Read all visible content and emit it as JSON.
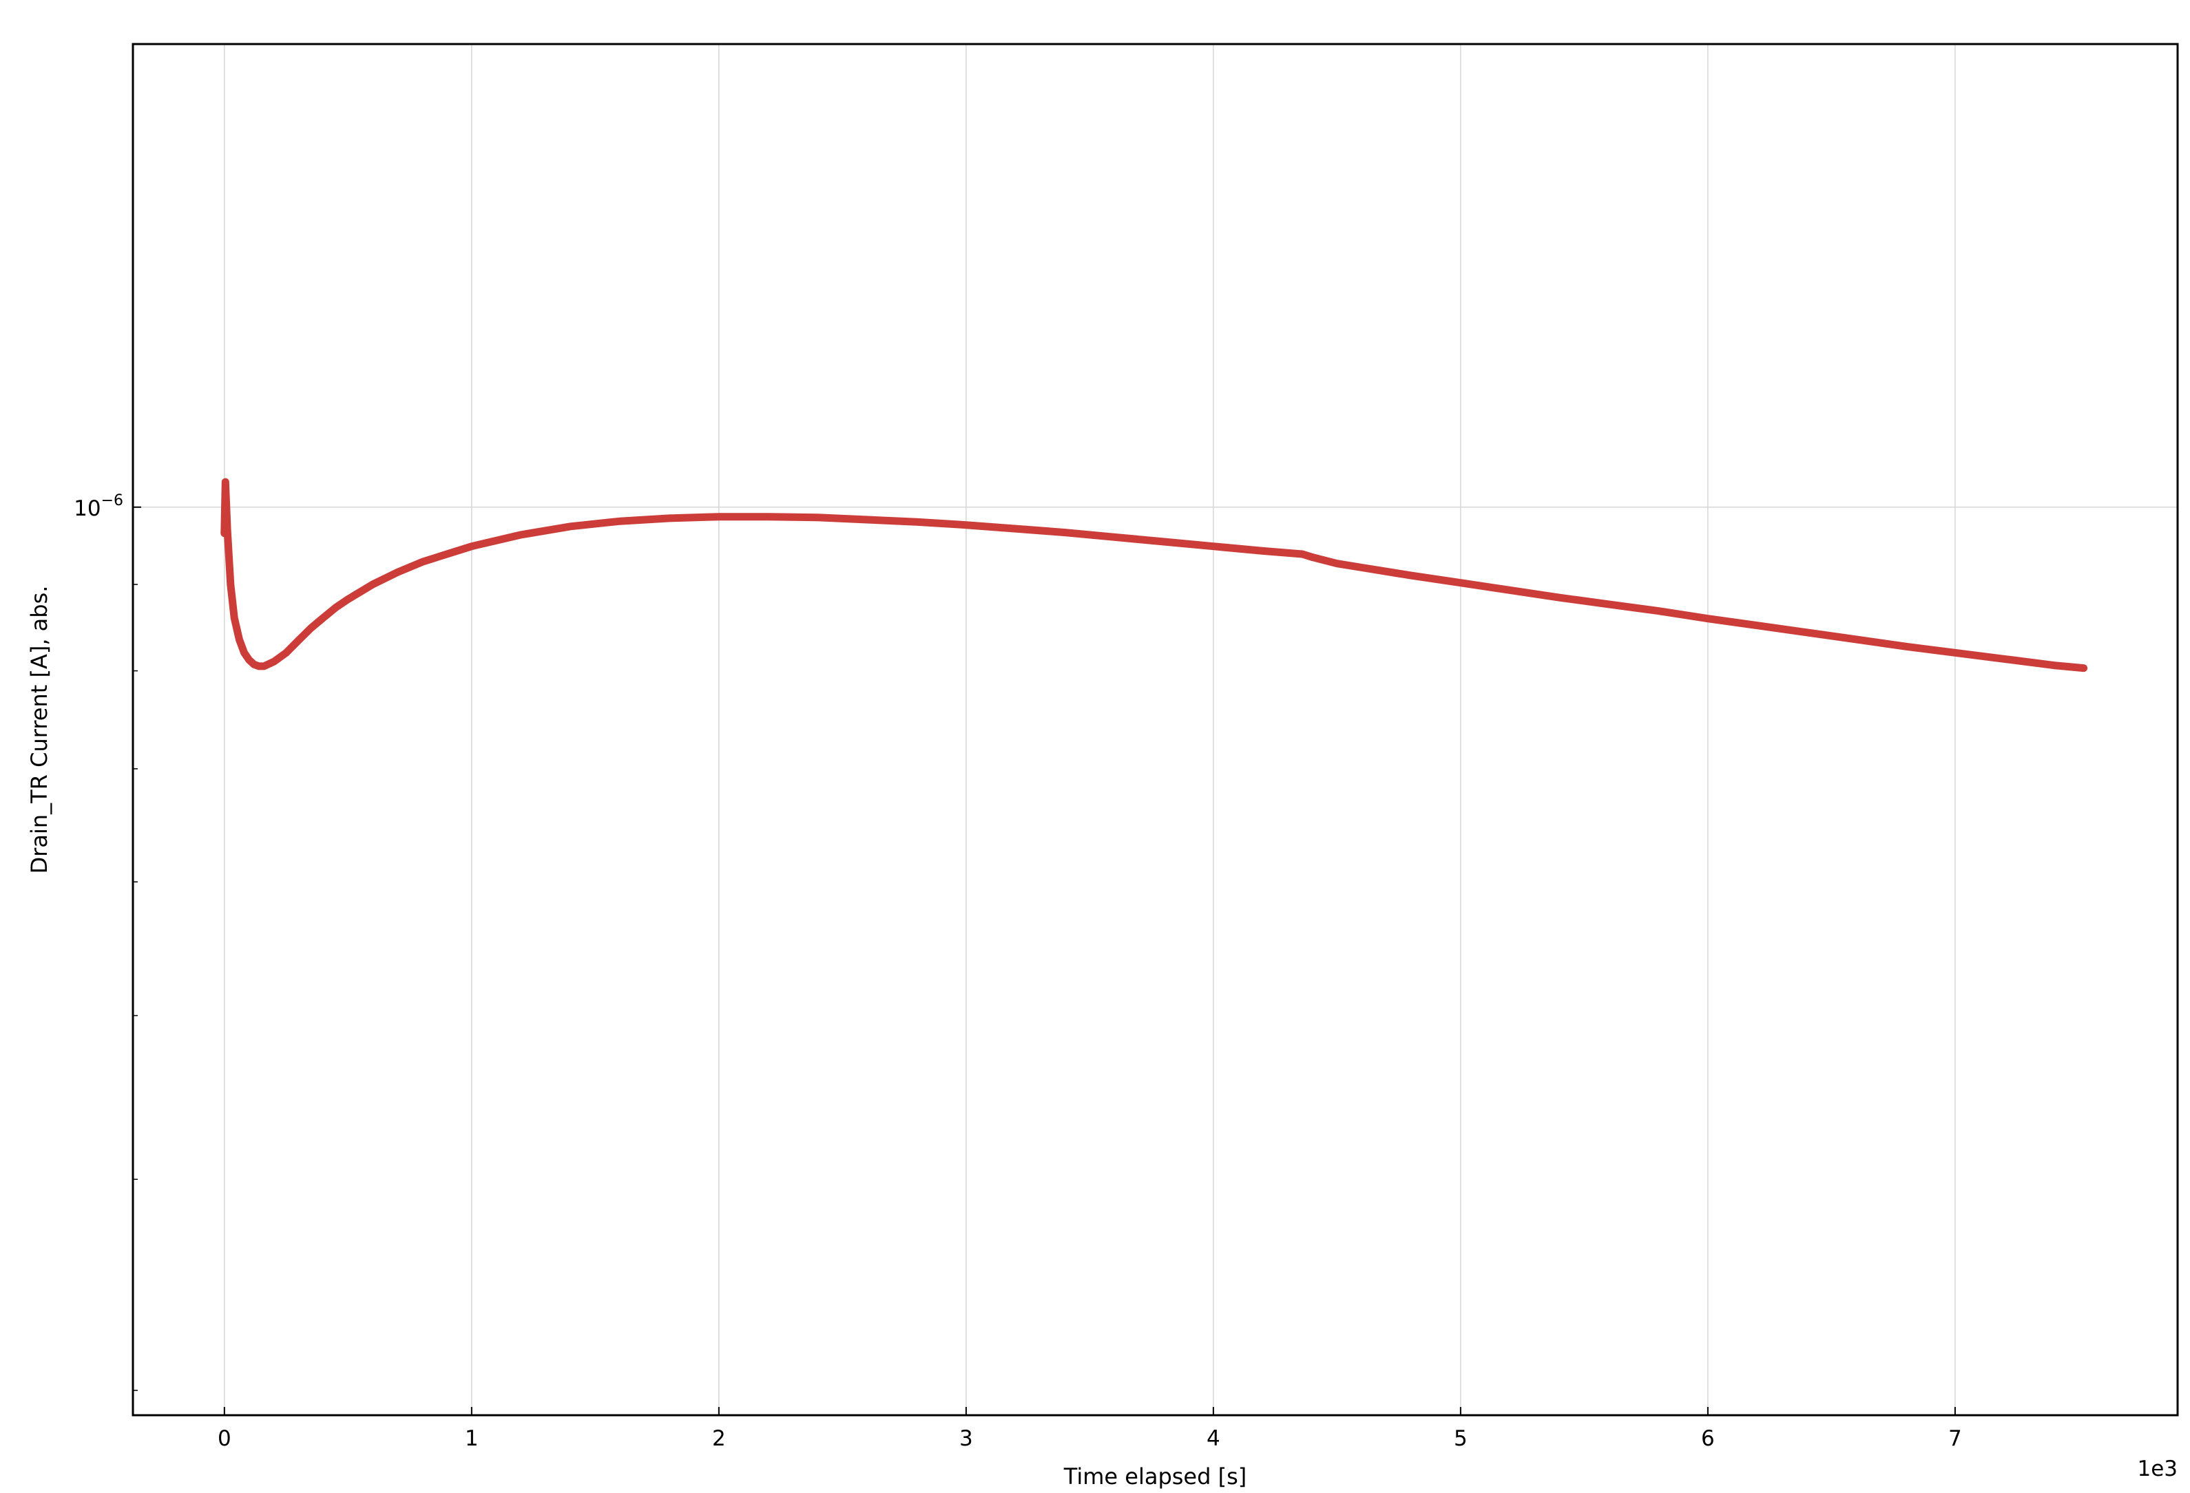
{
  "chart_data": {
    "type": "line",
    "title": "",
    "xlabel": "Time elapsed [s]",
    "ylabel": "Drain_TR Current [A], abs.",
    "x_offset_label": "1e3",
    "xlim": [
      -0.37,
      7.9
    ],
    "ylim": [
      2.9e-07,
      1.88e-06
    ],
    "y_scale": "log",
    "x_ticks": [
      0,
      1,
      2,
      3,
      4,
      5,
      6,
      7
    ],
    "x_tick_labels": [
      "0",
      "1",
      "2",
      "3",
      "4",
      "5",
      "6",
      "7"
    ],
    "y_major_ticks": [
      1e-06
    ],
    "y_major_tick_labels": [
      {
        "base": "10",
        "exp": "−6"
      }
    ],
    "y_minor_ticks": [
      3e-07,
      4e-07,
      5e-07,
      6e-07,
      7e-07,
      8e-07,
      9e-07,
      2e-06
    ],
    "grid": true,
    "legend": "none",
    "series": [
      {
        "color": "#cc3d3a",
        "x": [
          0,
          0.004,
          0.012,
          0.025,
          0.04,
          0.06,
          0.08,
          0.1,
          0.12,
          0.14,
          0.16,
          0.2,
          0.25,
          0.3,
          0.35,
          0.4,
          0.45,
          0.5,
          0.6,
          0.7,
          0.8,
          0.9,
          1.0,
          1.2,
          1.4,
          1.6,
          1.8,
          2.0,
          2.2,
          2.4,
          2.6,
          2.8,
          3.0,
          3.2,
          3.4,
          3.6,
          3.8,
          4.0,
          4.2,
          4.36,
          4.4,
          4.45,
          4.5,
          4.6,
          4.8,
          5.0,
          5.2,
          5.4,
          5.6,
          5.8,
          6.0,
          6.2,
          6.4,
          6.6,
          6.8,
          7.0,
          7.2,
          7.4,
          7.52
        ],
        "y": [
          9.65e-07,
          1.035e-06,
          9.7e-07,
          9e-07,
          8.6e-07,
          8.35e-07,
          8.2e-07,
          8.12e-07,
          8.07e-07,
          8.05e-07,
          8.05e-07,
          8.1e-07,
          8.2e-07,
          8.34e-07,
          8.48e-07,
          8.6e-07,
          8.72e-07,
          8.82e-07,
          9e-07,
          9.15e-07,
          9.28e-07,
          9.38e-07,
          9.48e-07,
          9.63e-07,
          9.74e-07,
          9.81e-07,
          9.85e-07,
          9.87e-07,
          9.87e-07,
          9.86e-07,
          9.83e-07,
          9.8e-07,
          9.76e-07,
          9.71e-07,
          9.66e-07,
          9.6e-07,
          9.54e-07,
          9.48e-07,
          9.42e-07,
          9.38e-07,
          9.34e-07,
          9.3e-07,
          9.26e-07,
          9.21e-07,
          9.11e-07,
          9.02e-07,
          8.93e-07,
          8.84e-07,
          8.76e-07,
          8.68e-07,
          8.59e-07,
          8.51e-07,
          8.43e-07,
          8.35e-07,
          8.27e-07,
          8.2e-07,
          8.13e-07,
          8.06e-07,
          8.03e-07
        ]
      }
    ]
  }
}
